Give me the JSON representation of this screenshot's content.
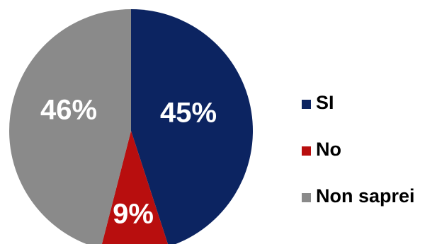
{
  "chart_data": {
    "type": "pie",
    "categories": [
      "SI",
      "No",
      "Non saprei"
    ],
    "values": [
      45,
      9,
      46
    ],
    "value_labels": [
      "45%",
      "9%",
      "46%"
    ],
    "colors": [
      "#0c2461",
      "#b80e0e",
      "#8a8a8a"
    ],
    "legend_position": "right",
    "start": "top",
    "direction": "clockwise"
  }
}
